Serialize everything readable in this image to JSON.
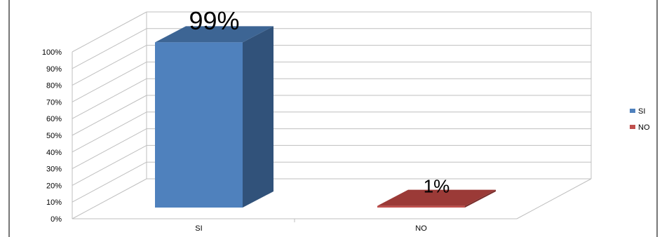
{
  "chart_data": {
    "type": "bar",
    "title": "",
    "xlabel": "",
    "ylabel": "",
    "categories": [
      "SI",
      "NO"
    ],
    "values": [
      99,
      1
    ],
    "data_labels": [
      "99%",
      "1%"
    ],
    "ylim": [
      0,
      100
    ],
    "y_ticks": [
      "0%",
      "10%",
      "20%",
      "30%",
      "40%",
      "50%",
      "60%",
      "70%",
      "80%",
      "90%",
      "100%"
    ],
    "grid": true,
    "three_d": true,
    "legend": {
      "position": "right",
      "items": [
        {
          "label": "SI",
          "color": "#4f81bd"
        },
        {
          "label": "NO",
          "color": "#c0504d"
        }
      ]
    },
    "colors": {
      "bar_front": [
        "#4f81bd",
        "#c0504d"
      ],
      "bar_side": [
        "#31527a",
        "#7a2e2c"
      ],
      "bar_top": [
        "#3d6594",
        "#9b3a37"
      ],
      "grid": "#bfbfbf",
      "border": "#4a4a4a"
    }
  }
}
